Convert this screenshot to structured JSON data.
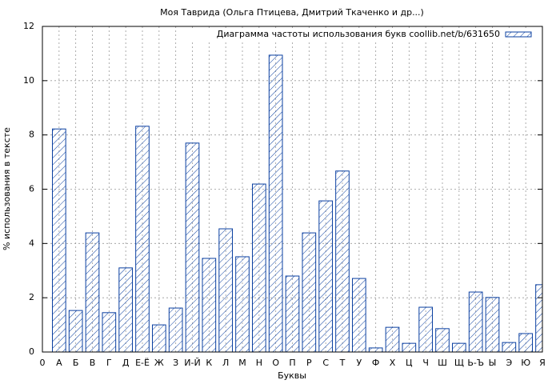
{
  "chart_data": {
    "type": "bar",
    "title": "Моя Таврида (Ольга Птицева, Дмитрий Ткаченко и др...)",
    "x_label": "Буквы",
    "y_label": "% использования в тексте",
    "categories": [
      "0",
      "А",
      "Б",
      "В",
      "Г",
      "Д",
      "Е-Ё",
      "Ж",
      "З",
      "И-Й",
      "К",
      "Л",
      "М",
      "Н",
      "О",
      "П",
      "Р",
      "С",
      "Т",
      "У",
      "Ф",
      "Х",
      "Ц",
      "Ч",
      "Ш",
      "Щ",
      "Ь-Ъ",
      "Ы",
      "Э",
      "Ю",
      "Я"
    ],
    "series": [
      {
        "name": "Диаграмма частоты использования букв coollib.net/b/631650",
        "color": "#0a3fa0",
        "values": [
          null,
          8.22,
          1.53,
          4.39,
          1.45,
          3.1,
          8.32,
          1.0,
          1.62,
          7.7,
          3.45,
          4.54,
          3.51,
          6.19,
          10.94,
          2.8,
          4.39,
          5.57,
          6.67,
          2.71,
          0.15,
          0.91,
          0.32,
          1.65,
          0.86,
          0.32,
          2.21,
          2.01,
          0.35,
          0.68,
          2.48
        ]
      }
    ],
    "ylim": [
      0,
      12
    ],
    "yticks": [
      0,
      2,
      4,
      6,
      8,
      10,
      12
    ],
    "grid": true,
    "legend": "top-right"
  }
}
